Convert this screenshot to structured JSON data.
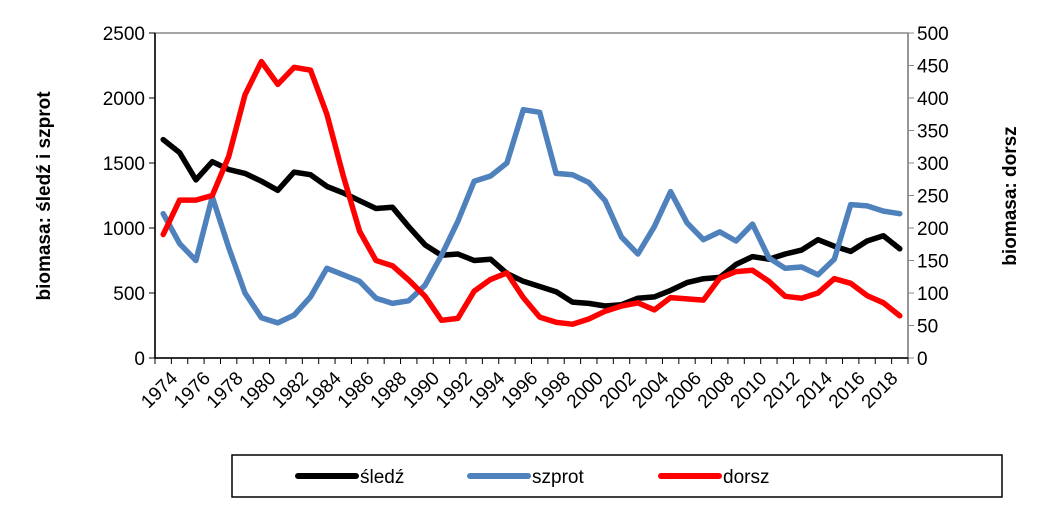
{
  "chart_data": {
    "type": "line",
    "title": "",
    "xlabel": "",
    "ylabel": "biomasa:  śledź i szprot",
    "y2label": "biomasa: dorsz",
    "ylim": [
      0,
      2500
    ],
    "y2lim": [
      0,
      500
    ],
    "yticks": [
      0,
      500,
      1000,
      1500,
      2000,
      2500
    ],
    "y2ticks": [
      0,
      50,
      100,
      150,
      200,
      250,
      300,
      350,
      400,
      450,
      500
    ],
    "x": [
      1974,
      1975,
      1976,
      1977,
      1978,
      1979,
      1980,
      1981,
      1982,
      1983,
      1984,
      1985,
      1986,
      1987,
      1988,
      1989,
      1990,
      1991,
      1992,
      1993,
      1994,
      1995,
      1996,
      1997,
      1998,
      1999,
      2000,
      2001,
      2002,
      2003,
      2004,
      2005,
      2006,
      2007,
      2008,
      2009,
      2010,
      2011,
      2012,
      2013,
      2014,
      2015,
      2016,
      2017,
      2018,
      2019
    ],
    "xtick_labels": [
      "1974",
      "1976",
      "1978",
      "1980",
      "1982",
      "1984",
      "1986",
      "1988",
      "1990",
      "1992",
      "1994",
      "1996",
      "1998",
      "2000",
      "2002",
      "2004",
      "2006",
      "2008",
      "2010",
      "2012",
      "2014",
      "2016",
      "2018"
    ],
    "grid": false,
    "legend_position": "bottom",
    "series": [
      {
        "name": "śledź",
        "axis": "left",
        "color": "#000000",
        "values": [
          1680,
          1580,
          1370,
          1510,
          1450,
          1420,
          1360,
          1290,
          1430,
          1410,
          1320,
          1270,
          1210,
          1150,
          1160,
          1010,
          870,
          790,
          800,
          750,
          760,
          650,
          590,
          550,
          510,
          430,
          420,
          400,
          410,
          460,
          470,
          520,
          580,
          610,
          620,
          720,
          780,
          760,
          800,
          830,
          910,
          860,
          820,
          900,
          940,
          840
        ]
      },
      {
        "name": "szprot",
        "axis": "left",
        "color": "#4f81bd",
        "values": [
          1110,
          880,
          750,
          1240,
          850,
          500,
          310,
          270,
          330,
          470,
          690,
          640,
          590,
          460,
          420,
          440,
          560,
          790,
          1050,
          1360,
          1400,
          1500,
          1910,
          1890,
          1420,
          1410,
          1350,
          1210,
          930,
          800,
          1010,
          1280,
          1040,
          910,
          970,
          900,
          1030,
          770,
          690,
          700,
          640,
          760,
          1180,
          1170,
          1130,
          1110
        ]
      },
      {
        "name": "dorsz",
        "axis": "right",
        "color": "#ff0000",
        "values": [
          190,
          243,
          243,
          250,
          310,
          405,
          456,
          421,
          447,
          443,
          375,
          280,
          195,
          150,
          142,
          120,
          95,
          58,
          61,
          103,
          121,
          131,
          93,
          63,
          55,
          52,
          60,
          72,
          80,
          85,
          74,
          93,
          91,
          89,
          123,
          133,
          135,
          118,
          95,
          92,
          100,
          122,
          115,
          96,
          85,
          65
        ]
      }
    ]
  }
}
